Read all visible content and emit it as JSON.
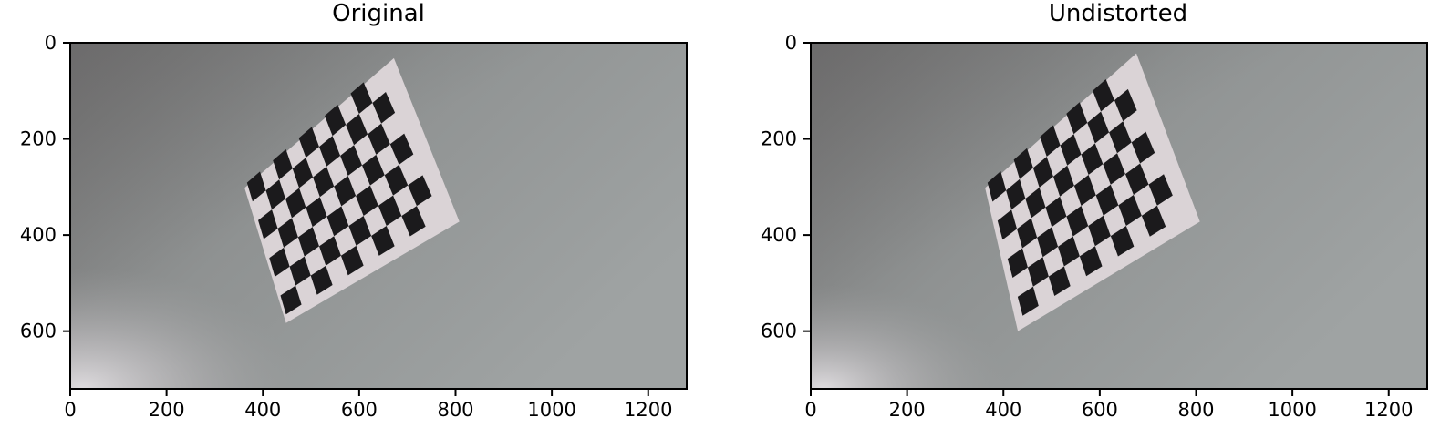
{
  "panels": [
    {
      "title": "Original",
      "xticks": [
        0,
        200,
        400,
        600,
        800,
        1000,
        1200
      ],
      "yticks": [
        0,
        200,
        400,
        600
      ],
      "xlim": [
        0,
        1280
      ],
      "ylim": [
        720,
        0
      ]
    },
    {
      "title": "Undistorted",
      "xticks": [
        0,
        200,
        400,
        600,
        800,
        1000,
        1200
      ],
      "yticks": [
        0,
        200,
        400,
        600
      ],
      "xlim": [
        0,
        1280
      ],
      "ylim": [
        720,
        0
      ]
    }
  ],
  "scene": {
    "wall_color_dark": "#727171",
    "wall_color_light": "#9fa3a3",
    "glare_color": "#d9d6d9",
    "paper_color": "#dad3d6",
    "square_color": "#1b1a1c",
    "board_rows": 7,
    "board_cols": 10
  }
}
